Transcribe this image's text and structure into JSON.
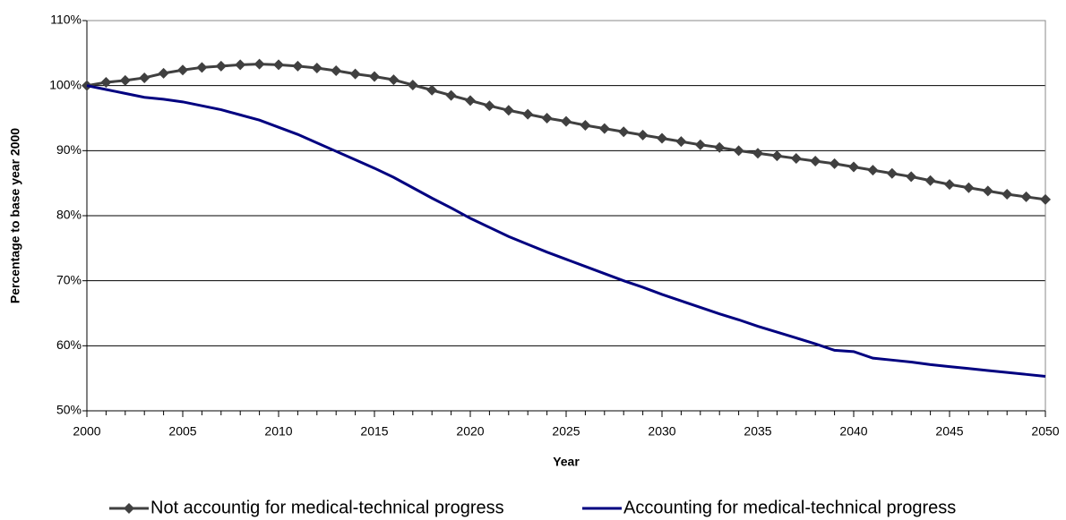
{
  "chart_data": {
    "type": "line",
    "x_label": "Year",
    "y_label": "Percentage to base year 2000",
    "x": [
      2000,
      2001,
      2002,
      2003,
      2004,
      2005,
      2006,
      2007,
      2008,
      2009,
      2010,
      2011,
      2012,
      2013,
      2014,
      2015,
      2016,
      2017,
      2018,
      2019,
      2020,
      2021,
      2022,
      2023,
      2024,
      2025,
      2026,
      2027,
      2028,
      2029,
      2030,
      2031,
      2032,
      2033,
      2034,
      2035,
      2036,
      2037,
      2038,
      2039,
      2040,
      2041,
      2042,
      2043,
      2044,
      2045,
      2046,
      2047,
      2048,
      2049,
      2050
    ],
    "series": [
      {
        "name": "Not accountig for medical-technical progress",
        "color": "#404040",
        "marker": "diamond",
        "values": [
          100,
          100.5,
          100.8,
          101.2,
          101.9,
          102.4,
          102.8,
          103.0,
          103.2,
          103.3,
          103.2,
          103.0,
          102.7,
          102.3,
          101.8,
          101.4,
          100.9,
          100.1,
          99.3,
          98.5,
          97.7,
          96.9,
          96.2,
          95.6,
          95.0,
          94.5,
          93.9,
          93.4,
          92.9,
          92.4,
          91.9,
          91.4,
          90.9,
          90.5,
          90.0,
          89.6,
          89.2,
          88.8,
          88.4,
          88.0,
          87.5,
          87.0,
          86.5,
          86.0,
          85.4,
          84.8,
          84.3,
          83.8,
          83.3,
          82.9,
          82.5
        ]
      },
      {
        "name": "Accounting for medical-technical progress",
        "color": "#000080",
        "values": [
          100,
          99.4,
          98.8,
          98.2,
          97.9,
          97.5,
          96.9,
          96.3,
          95.5,
          94.7,
          93.6,
          92.5,
          91.2,
          89.9,
          88.6,
          87.3,
          85.9,
          84.3,
          82.7,
          81.2,
          79.6,
          78.2,
          76.8,
          75.6,
          74.4,
          73.3,
          72.2,
          71.1,
          70.0,
          69.0,
          67.9,
          66.9,
          65.9,
          64.9,
          64.0,
          63.0,
          62.1,
          61.2,
          60.3,
          59.3,
          59.1,
          58.1,
          57.8,
          57.5,
          57.1,
          56.8,
          56.5,
          56.2,
          55.9,
          55.6,
          55.3
        ]
      }
    ],
    "xlim": [
      2000,
      2050
    ],
    "xticks": [
      2000,
      2005,
      2010,
      2015,
      2020,
      2025,
      2030,
      2035,
      2040,
      2045,
      2050
    ],
    "ylim": [
      50,
      110
    ],
    "yticks": [
      {
        "value": 50,
        "label": "50%"
      },
      {
        "value": 60,
        "label": "60%"
      },
      {
        "value": 70,
        "label": "70%"
      },
      {
        "value": 80,
        "label": "80%"
      },
      {
        "value": 90,
        "label": "90%"
      },
      {
        "value": 100,
        "label": "100%"
      },
      {
        "value": 110,
        "label": "110%"
      }
    ],
    "grid": true,
    "legend": "bottom"
  }
}
